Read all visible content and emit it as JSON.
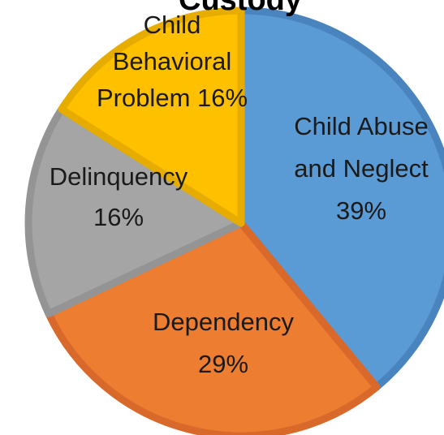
{
  "chart_data": {
    "type": "pie",
    "title": "Custody",
    "slices": [
      {
        "label_lines": [
          "Child Abuse",
          "and Neglect"
        ],
        "value_text": "39%",
        "value": 39,
        "color": "#5B9BD5",
        "edge": "#4A84BE"
      },
      {
        "label_lines": [
          "Dependency"
        ],
        "value_text": "29%",
        "value": 29,
        "color": "#ED7D31",
        "edge": "#D8692A"
      },
      {
        "label_lines": [
          "Delinquency"
        ],
        "value_text": "16%",
        "value": 16,
        "color": "#A5A5A5",
        "edge": "#949494"
      },
      {
        "label_lines": [
          "Child",
          "Behavioral",
          "Problem 16%"
        ],
        "value_text": "",
        "value": 16,
        "color": "#FFC000",
        "edge": "#E6AC00"
      }
    ]
  }
}
